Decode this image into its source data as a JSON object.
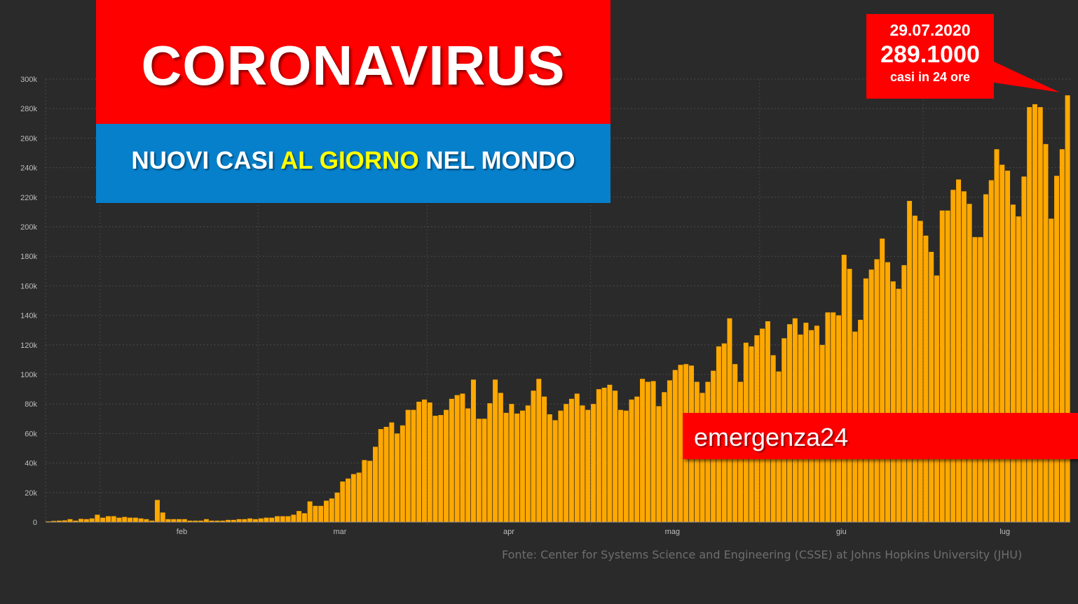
{
  "header": {
    "title": "CORONAVIRUS",
    "subtitle_pre": "NUOVI CASI ",
    "subtitle_highlight": "AL GIORNO",
    "subtitle_post": " NEL MONDO"
  },
  "callout": {
    "date": "29.07.2020",
    "value": "289.1000",
    "description": "casi in 24 ore"
  },
  "brand": "emergenza24",
  "source": "Fonte: Center for Systems Science and Engineering (CSSE) at Johns Hopkins University (JHU)",
  "colors": {
    "background": "#2a2a2a",
    "bar": "#ffa800",
    "title_red": "#fe0000",
    "subtitle_blue": "#0780cc",
    "highlight_yellow": "#ffff00"
  },
  "chart_data": {
    "type": "bar",
    "title": "NUOVI CASI AL GIORNO NEL MONDO",
    "x_range": [
      "2020-01-22",
      "2020-07-29"
    ],
    "ylim": [
      0,
      300000
    ],
    "yticks": [
      0,
      20000,
      40000,
      60000,
      80000,
      100000,
      120000,
      140000,
      160000,
      180000,
      200000,
      220000,
      240000,
      260000,
      280000,
      300000
    ],
    "ytick_labels": [
      "0",
      "20k",
      "40k",
      "60k",
      "80k",
      "100k",
      "120k",
      "140k",
      "160k",
      "180k",
      "200k",
      "220k",
      "240k",
      "260k",
      "280k",
      "300k"
    ],
    "month_ticks": [
      {
        "label": "feb",
        "date": "2020-02-01"
      },
      {
        "label": "mar",
        "date": "2020-03-01"
      },
      {
        "label": "apr",
        "date": "2020-04-01"
      },
      {
        "label": "mag",
        "date": "2020-05-01"
      },
      {
        "label": "giu",
        "date": "2020-06-01"
      },
      {
        "label": "lug",
        "date": "2020-07-01"
      }
    ],
    "grid": true,
    "values": [
      500,
      800,
      1000,
      1200,
      2000,
      1000,
      2200,
      2000,
      2500,
      5000,
      3000,
      4000,
      4000,
      3000,
      3500,
      3000,
      3000,
      2500,
      2000,
      1000,
      15000,
      6500,
      2000,
      2000,
      2000,
      2000,
      1000,
      1000,
      1000,
      2000,
      1000,
      1000,
      1000,
      1500,
      1500,
      2000,
      2000,
      2500,
      2000,
      2500,
      3000,
      3000,
      4000,
      4000,
      4000,
      5000,
      7500,
      6000,
      14000,
      11000,
      11000,
      14500,
      16000,
      20000,
      27500,
      29500,
      32500,
      33500,
      42000,
      41500,
      51000,
      63000,
      64500,
      67500,
      60000,
      65500,
      76000,
      76000,
      81500,
      83000,
      81000,
      72000,
      72500,
      76000,
      83500,
      86000,
      87000,
      77000,
      96500,
      70000,
      70000,
      80500,
      96500,
      87500,
      74000,
      80000,
      73500,
      75500,
      79000,
      89000,
      97000,
      85000,
      73000,
      69000,
      75500,
      80000,
      83500,
      87000,
      79000,
      76000,
      80000,
      90000,
      91000,
      93000,
      89000,
      76000,
      75500,
      83000,
      85000,
      97000,
      95000,
      95500,
      78500,
      88000,
      96000,
      103000,
      106500,
      107000,
      106000,
      95000,
      87500,
      95000,
      102500,
      119000,
      121000,
      138000,
      107000,
      95000,
      121500,
      119000,
      126500,
      131000,
      136000,
      113000,
      102000,
      124500,
      134000,
      138000,
      127000,
      135000,
      130000,
      133000,
      120000,
      142000,
      142000,
      140000,
      181000,
      171500,
      129000,
      137000,
      165000,
      171000,
      178000,
      192000,
      176000,
      163000,
      158000,
      174000,
      217500,
      207500,
      204000,
      194000,
      183000,
      167000,
      211000,
      211000,
      225000,
      232000,
      224000,
      215500,
      193000,
      193000,
      222000,
      231500,
      252500,
      242000,
      238000,
      215000,
      207000,
      234000,
      281000,
      283000,
      281000,
      256000,
      205500,
      234500,
      252500,
      289000
    ]
  }
}
